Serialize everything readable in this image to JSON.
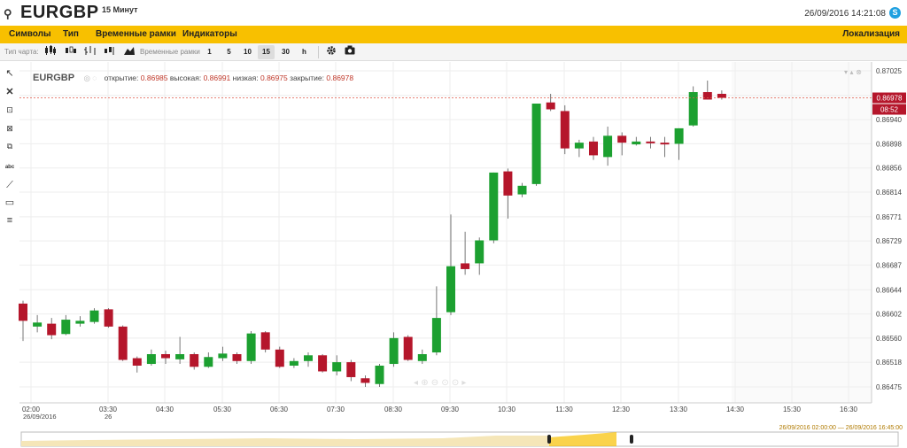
{
  "header": {
    "symbol": "EURGBP",
    "timeframe": "15 Минут",
    "datetime": "26/09/2016 14:21:08",
    "logo_icon": "search-logo-icon",
    "skype_icon": "skype-icon"
  },
  "menu": {
    "items": [
      "Символы",
      "Тип",
      "Временные рамки",
      "Индикаторы"
    ],
    "right": "Локализация",
    "bg_color": "#f8c000"
  },
  "toolbar": {
    "chart_type_label": "Тип чарта:",
    "timeframes_label": "Временные рамки",
    "timeframes": [
      "1",
      "5",
      "10",
      "15",
      "30",
      "h"
    ],
    "active_timeframe": "15"
  },
  "ohlc": {
    "symbol": "EURGBP",
    "open_label": "открытие:",
    "open": "0.86985",
    "high_label": "высокая:",
    "high": "0.86991",
    "low_label": "низкая:",
    "low": "0.86975",
    "close_label": "закрытие:",
    "close": "0.86978"
  },
  "price_tags": {
    "last_price": "0.86978",
    "countdown": "08:52"
  },
  "date_range": "26/09/2016 02:00:00 — 26/09/2016 16:45:00",
  "chart_data": {
    "type": "candlestick",
    "y_ticks": [
      "0.87025",
      "0.86982",
      "0.86940",
      "0.86898",
      "0.86856",
      "0.86814",
      "0.86771",
      "0.86729",
      "0.86687",
      "0.86644",
      "0.86602",
      "0.86560",
      "0.86518",
      "0.86475"
    ],
    "x_ticks": [
      "02:00",
      "03:30",
      "04:30",
      "05:30",
      "06:30",
      "07:30",
      "08:30",
      "09:30",
      "10:30",
      "11:30",
      "12:30",
      "13:30",
      "14:30",
      "15:30",
      "16:30"
    ],
    "x_subticks": [
      "26/09/2016",
      "26"
    ],
    "ylim": [
      0.8645,
      0.8704
    ],
    "up_color": "#1ca030",
    "down_color": "#b5162b",
    "candles": [
      {
        "o": 0.8662,
        "h": 0.86625,
        "l": 0.86555,
        "c": 0.8659
      },
      {
        "o": 0.8658,
        "h": 0.866,
        "l": 0.8657,
        "c": 0.86587
      },
      {
        "o": 0.86585,
        "h": 0.86595,
        "l": 0.86558,
        "c": 0.86565
      },
      {
        "o": 0.86567,
        "h": 0.866,
        "l": 0.86565,
        "c": 0.86592
      },
      {
        "o": 0.86585,
        "h": 0.86598,
        "l": 0.8658,
        "c": 0.8659
      },
      {
        "o": 0.86588,
        "h": 0.86612,
        "l": 0.86585,
        "c": 0.86608
      },
      {
        "o": 0.8661,
        "h": 0.86612,
        "l": 0.86578,
        "c": 0.8658
      },
      {
        "o": 0.8658,
        "h": 0.86582,
        "l": 0.8652,
        "c": 0.86522
      },
      {
        "o": 0.86525,
        "h": 0.86528,
        "l": 0.865,
        "c": 0.86512
      },
      {
        "o": 0.86515,
        "h": 0.8654,
        "l": 0.86512,
        "c": 0.86532
      },
      {
        "o": 0.86532,
        "h": 0.86538,
        "l": 0.86515,
        "c": 0.86525
      },
      {
        "o": 0.86523,
        "h": 0.86562,
        "l": 0.86515,
        "c": 0.86532
      },
      {
        "o": 0.86532,
        "h": 0.86535,
        "l": 0.86505,
        "c": 0.8651
      },
      {
        "o": 0.8651,
        "h": 0.86535,
        "l": 0.86508,
        "c": 0.86527
      },
      {
        "o": 0.86525,
        "h": 0.86545,
        "l": 0.8652,
        "c": 0.86533
      },
      {
        "o": 0.86532,
        "h": 0.86535,
        "l": 0.86515,
        "c": 0.8652
      },
      {
        "o": 0.8652,
        "h": 0.86572,
        "l": 0.86515,
        "c": 0.86568
      },
      {
        "o": 0.8657,
        "h": 0.86572,
        "l": 0.86535,
        "c": 0.8654
      },
      {
        "o": 0.8654,
        "h": 0.86545,
        "l": 0.86508,
        "c": 0.8651
      },
      {
        "o": 0.86512,
        "h": 0.86525,
        "l": 0.86508,
        "c": 0.8652
      },
      {
        "o": 0.8652,
        "h": 0.86535,
        "l": 0.8651,
        "c": 0.8653
      },
      {
        "o": 0.8653,
        "h": 0.86532,
        "l": 0.865,
        "c": 0.86502
      },
      {
        "o": 0.86502,
        "h": 0.8653,
        "l": 0.86495,
        "c": 0.86518
      },
      {
        "o": 0.86518,
        "h": 0.86522,
        "l": 0.86485,
        "c": 0.86492
      },
      {
        "o": 0.8649,
        "h": 0.86495,
        "l": 0.86475,
        "c": 0.86482
      },
      {
        "o": 0.8648,
        "h": 0.86515,
        "l": 0.86475,
        "c": 0.86512
      },
      {
        "o": 0.86515,
        "h": 0.8657,
        "l": 0.8651,
        "c": 0.8656
      },
      {
        "o": 0.86562,
        "h": 0.86565,
        "l": 0.8652,
        "c": 0.86522
      },
      {
        "o": 0.8652,
        "h": 0.8654,
        "l": 0.86515,
        "c": 0.86532
      },
      {
        "o": 0.86535,
        "h": 0.8665,
        "l": 0.8653,
        "c": 0.86595
      },
      {
        "o": 0.86605,
        "h": 0.86775,
        "l": 0.866,
        "c": 0.86685
      },
      {
        "o": 0.8669,
        "h": 0.86745,
        "l": 0.8667,
        "c": 0.8668
      },
      {
        "o": 0.8669,
        "h": 0.86735,
        "l": 0.8667,
        "c": 0.8673
      },
      {
        "o": 0.8673,
        "h": 0.86848,
        "l": 0.86725,
        "c": 0.86848
      },
      {
        "o": 0.8685,
        "h": 0.86855,
        "l": 0.86768,
        "c": 0.86808
      },
      {
        "o": 0.8681,
        "h": 0.8683,
        "l": 0.86805,
        "c": 0.86825
      },
      {
        "o": 0.86828,
        "h": 0.86968,
        "l": 0.86825,
        "c": 0.86968
      },
      {
        "o": 0.8697,
        "h": 0.86985,
        "l": 0.86955,
        "c": 0.86958
      },
      {
        "o": 0.86955,
        "h": 0.86965,
        "l": 0.8688,
        "c": 0.8689
      },
      {
        "o": 0.8689,
        "h": 0.86905,
        "l": 0.86875,
        "c": 0.869
      },
      {
        "o": 0.86902,
        "h": 0.8691,
        "l": 0.8687,
        "c": 0.86878
      },
      {
        "o": 0.86875,
        "h": 0.86928,
        "l": 0.8686,
        "c": 0.86912
      },
      {
        "o": 0.86912,
        "h": 0.86918,
        "l": 0.86878,
        "c": 0.869
      },
      {
        "o": 0.86897,
        "h": 0.8691,
        "l": 0.86895,
        "c": 0.86902
      },
      {
        "o": 0.86902,
        "h": 0.8691,
        "l": 0.8689,
        "c": 0.869
      },
      {
        "o": 0.869,
        "h": 0.8691,
        "l": 0.86875,
        "c": 0.86898
      },
      {
        "o": 0.86898,
        "h": 0.86925,
        "l": 0.8687,
        "c": 0.86925
      },
      {
        "o": 0.8693,
        "h": 0.86998,
        "l": 0.86928,
        "c": 0.86988
      },
      {
        "o": 0.86988,
        "h": 0.87008,
        "l": 0.86975,
        "c": 0.86975
      },
      {
        "o": 0.86985,
        "h": 0.86991,
        "l": 0.86975,
        "c": 0.86978
      }
    ]
  },
  "navigator_color": "#f5e6b8"
}
